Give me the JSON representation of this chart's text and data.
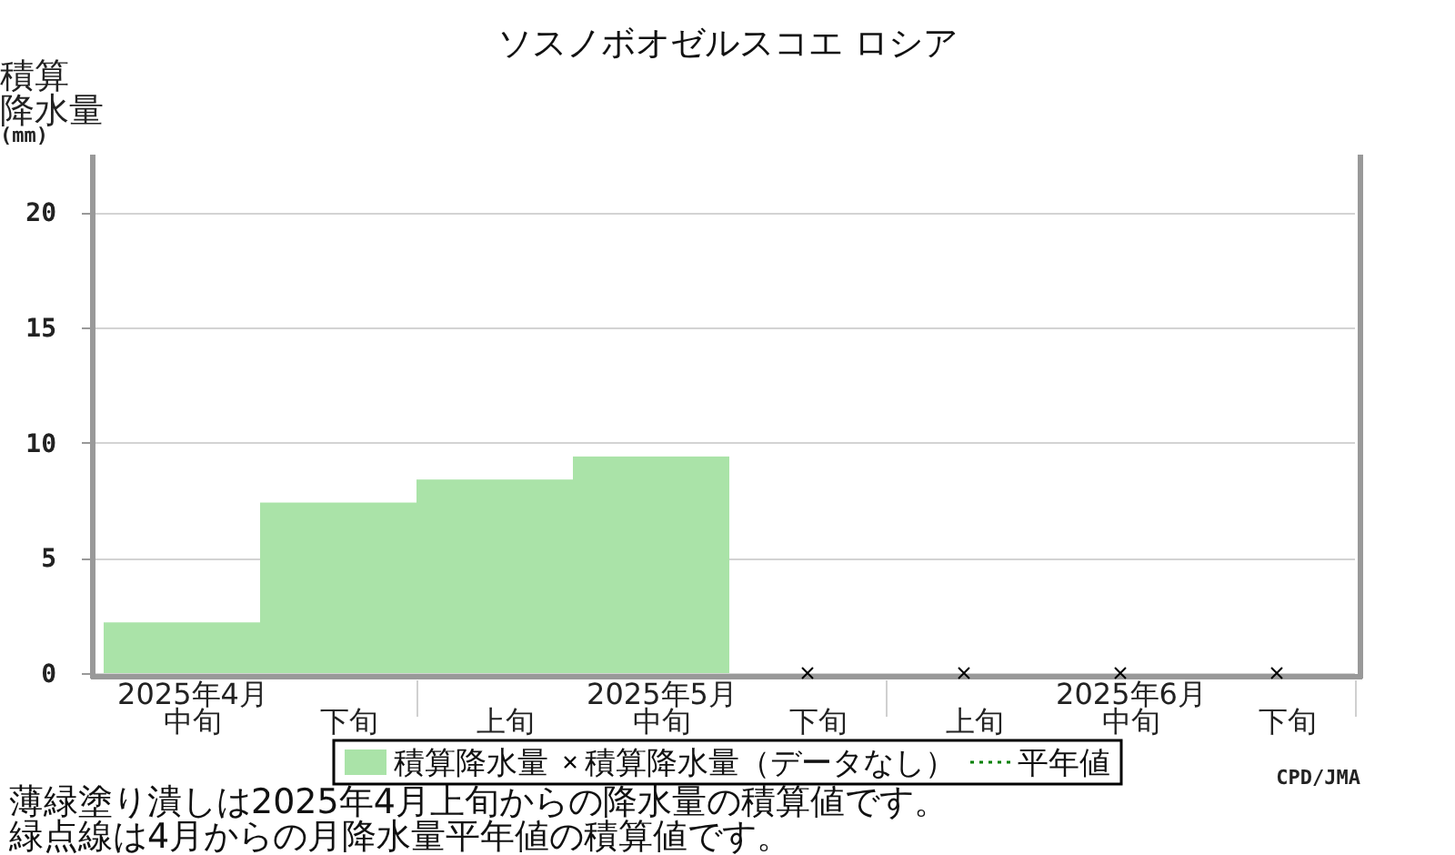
{
  "chart_data": {
    "type": "bar",
    "title": "ソスノボオゼルスコエ ロシア",
    "ylabel": "積算降水量(mm)",
    "categories": [
      "2025年4月中旬",
      "下旬",
      "上旬",
      "2025年5月中旬",
      "下旬",
      "上旬",
      "2025年6月中旬",
      "下旬"
    ],
    "series": [
      {
        "name": "積算降水量",
        "color": "#aae3a8",
        "values": [
          2.2,
          7.4,
          8.4,
          9.4,
          null,
          null,
          null,
          null
        ]
      },
      {
        "name": "積算降水量（データなし）",
        "type": "scatter",
        "marker": "cross",
        "color": "#000000",
        "values": [
          null,
          null,
          null,
          null,
          0,
          0,
          0,
          0
        ]
      },
      {
        "name": "平年値",
        "type": "line",
        "line_style": "dotted",
        "color": "#008000",
        "values": [
          null,
          null,
          null,
          null,
          null,
          null,
          null,
          null
        ]
      }
    ],
    "ylim": [
      0,
      22.5
    ],
    "yticks": [
      0,
      5,
      10,
      15,
      20
    ],
    "grid": "y",
    "legend": "bottom",
    "annotations": [
      "CPD/JMA",
      "薄緑塗り潰しは2025年4月上旬からの降水量の積算値です。",
      "緑点線は4月からの月降水量平年値の積算値です。"
    ]
  }
}
